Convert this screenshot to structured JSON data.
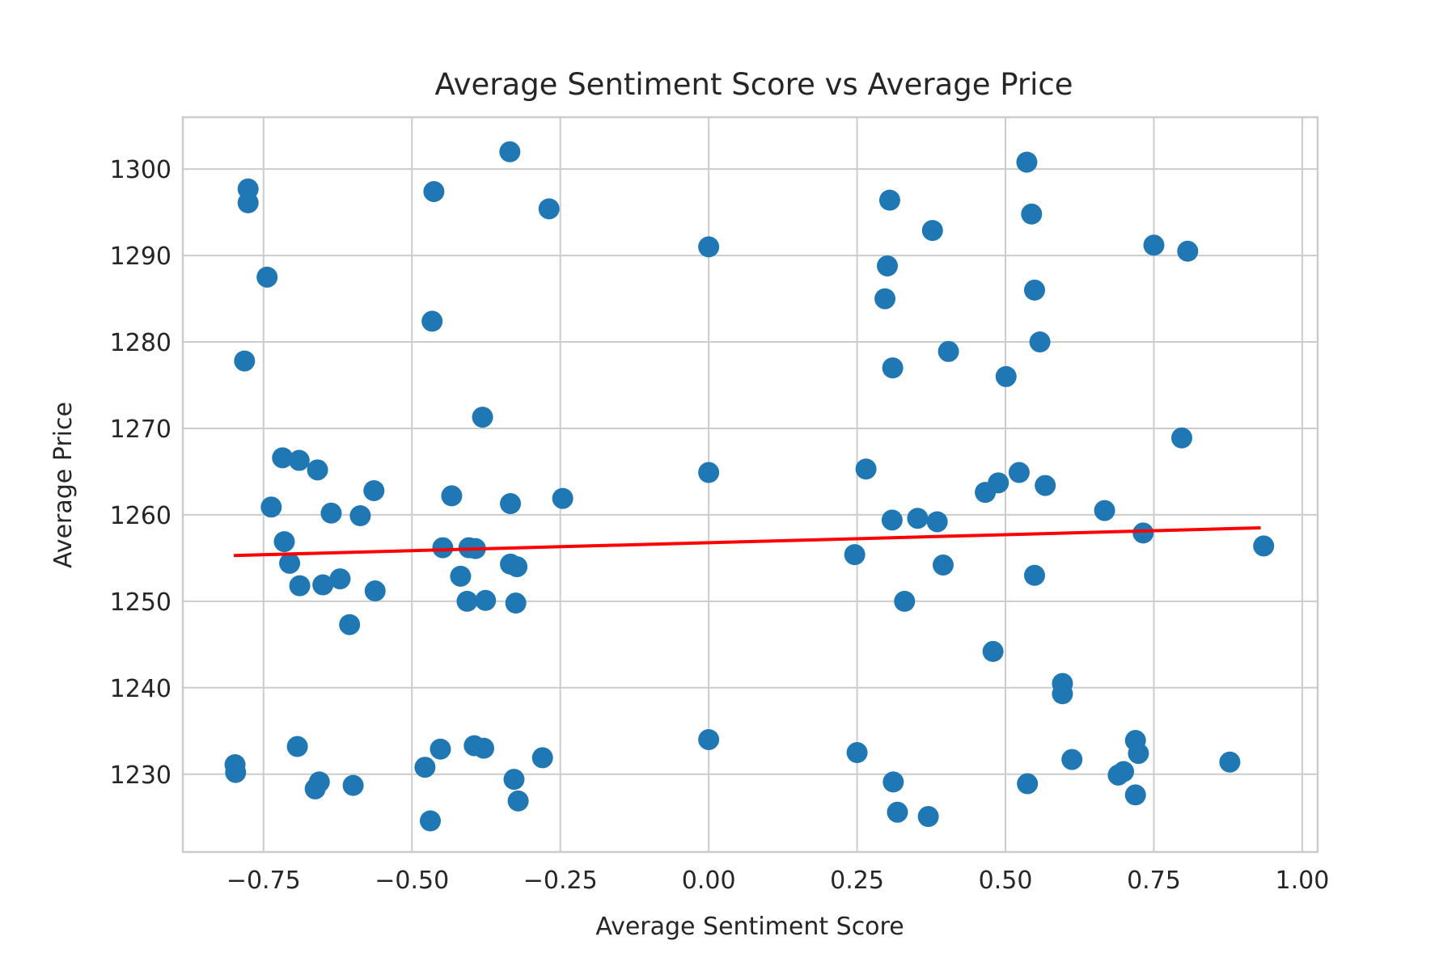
{
  "chart_data": {
    "type": "scatter",
    "title": "Average Sentiment Score vs Average Price",
    "xlabel": "Average Sentiment Score",
    "ylabel": "Average Price",
    "xlim": [
      -0.886,
      1.026
    ],
    "ylim": [
      1221.0,
      1306.0
    ],
    "xticks": [
      -0.75,
      -0.5,
      -0.25,
      0.0,
      0.25,
      0.5,
      0.75,
      1.0
    ],
    "xtick_labels": [
      "−0.75",
      "−0.50",
      "−0.25",
      "0.00",
      "0.25",
      "0.50",
      "0.75",
      "1.00"
    ],
    "yticks": [
      1230,
      1240,
      1250,
      1260,
      1270,
      1280,
      1290,
      1300
    ],
    "ytick_labels": [
      "1230",
      "1240",
      "1250",
      "1260",
      "1270",
      "1280",
      "1290",
      "1300"
    ],
    "grid": true,
    "point_color": "#1f77b4",
    "trend_color": "#ff0000",
    "trendline": {
      "x": [
        -0.8,
        0.93
      ],
      "y": [
        1255.3,
        1258.5
      ]
    },
    "points": [
      [
        -0.776,
        1297.7
      ],
      [
        -0.776,
        1296.1
      ],
      [
        -0.744,
        1287.5
      ],
      [
        -0.782,
        1277.8
      ],
      [
        -0.737,
        1260.9
      ],
      [
        -0.718,
        1266.6
      ],
      [
        -0.69,
        1266.3
      ],
      [
        -0.659,
        1265.2
      ],
      [
        -0.636,
        1260.2
      ],
      [
        -0.587,
        1259.9
      ],
      [
        -0.564,
        1262.8
      ],
      [
        -0.715,
        1256.9
      ],
      [
        -0.706,
        1254.4
      ],
      [
        -0.689,
        1251.8
      ],
      [
        -0.65,
        1251.9
      ],
      [
        -0.621,
        1252.6
      ],
      [
        -0.562,
        1251.2
      ],
      [
        -0.605,
        1247.3
      ],
      [
        -0.798,
        1231.1
      ],
      [
        -0.797,
        1230.2
      ],
      [
        -0.693,
        1233.2
      ],
      [
        -0.663,
        1228.3
      ],
      [
        -0.656,
        1229.1
      ],
      [
        -0.599,
        1228.7
      ],
      [
        -0.463,
        1297.4
      ],
      [
        -0.335,
        1302.0
      ],
      [
        -0.269,
        1295.4
      ],
      [
        -0.466,
        1282.4
      ],
      [
        -0.381,
        1271.3
      ],
      [
        -0.433,
        1262.2
      ],
      [
        -0.334,
        1261.3
      ],
      [
        -0.246,
        1261.9
      ],
      [
        -0.448,
        1256.2
      ],
      [
        -0.404,
        1256.2
      ],
      [
        -0.393,
        1256.1
      ],
      [
        -0.334,
        1254.3
      ],
      [
        -0.323,
        1254.0
      ],
      [
        -0.418,
        1252.9
      ],
      [
        -0.407,
        1250.0
      ],
      [
        -0.376,
        1250.1
      ],
      [
        -0.325,
        1249.8
      ],
      [
        -0.478,
        1230.8
      ],
      [
        -0.452,
        1232.9
      ],
      [
        -0.395,
        1233.3
      ],
      [
        -0.379,
        1233.0
      ],
      [
        -0.28,
        1231.9
      ],
      [
        -0.328,
        1229.4
      ],
      [
        -0.321,
        1226.9
      ],
      [
        -0.469,
        1224.6
      ],
      [
        0.0,
        1291.0
      ],
      [
        0.0,
        1264.9
      ],
      [
        0.0,
        1234.0
      ],
      [
        0.305,
        1296.4
      ],
      [
        0.377,
        1292.9
      ],
      [
        0.301,
        1288.8
      ],
      [
        0.297,
        1285.0
      ],
      [
        0.31,
        1277.0
      ],
      [
        0.404,
        1278.9
      ],
      [
        0.265,
        1265.3
      ],
      [
        0.309,
        1259.4
      ],
      [
        0.352,
        1259.6
      ],
      [
        0.385,
        1259.2
      ],
      [
        0.246,
        1255.4
      ],
      [
        0.395,
        1254.2
      ],
      [
        0.33,
        1250.0
      ],
      [
        0.25,
        1232.5
      ],
      [
        0.311,
        1229.1
      ],
      [
        0.318,
        1225.6
      ],
      [
        0.37,
        1225.1
      ],
      [
        0.536,
        1300.8
      ],
      [
        0.544,
        1294.8
      ],
      [
        0.549,
        1286.0
      ],
      [
        0.558,
        1280.0
      ],
      [
        0.501,
        1276.0
      ],
      [
        0.466,
        1262.6
      ],
      [
        0.488,
        1263.7
      ],
      [
        0.523,
        1264.9
      ],
      [
        0.567,
        1263.4
      ],
      [
        0.549,
        1253.0
      ],
      [
        0.479,
        1244.2
      ],
      [
        0.537,
        1228.9
      ],
      [
        0.75,
        1291.2
      ],
      [
        0.807,
        1290.5
      ],
      [
        0.797,
        1268.9
      ],
      [
        0.667,
        1260.5
      ],
      [
        0.732,
        1257.9
      ],
      [
        0.935,
        1256.4
      ],
      [
        0.596,
        1240.5
      ],
      [
        0.596,
        1239.3
      ],
      [
        0.719,
        1233.9
      ],
      [
        0.724,
        1232.4
      ],
      [
        0.612,
        1231.7
      ],
      [
        0.878,
        1231.4
      ],
      [
        0.69,
        1229.9
      ],
      [
        0.699,
        1230.3
      ],
      [
        0.719,
        1227.6
      ]
    ]
  }
}
